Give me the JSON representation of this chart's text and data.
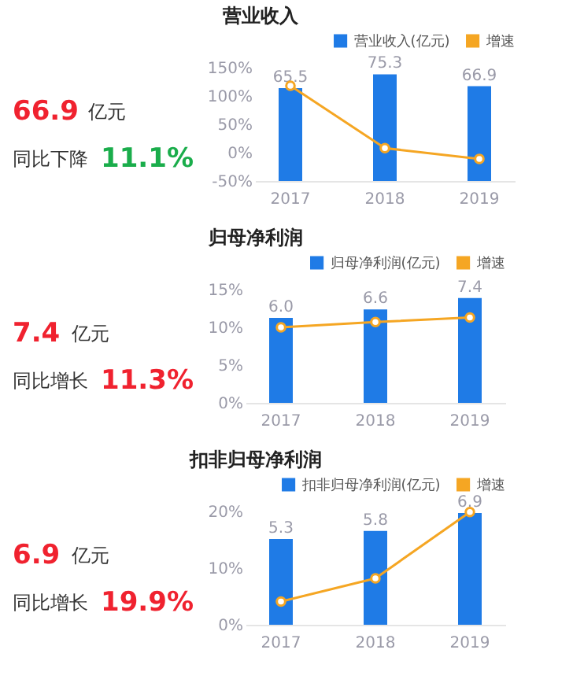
{
  "chart_data": [
    {
      "type": "other",
      "title": "营业收入",
      "annotations": [
        "66.9",
        "亿元",
        "同比下降",
        "11.1%"
      ],
      "colors": [
        "#f0222f",
        "#333333",
        "#333333",
        "#1aad4b"
      ]
    },
    {
      "type": "bar",
      "categories": [
        "2017",
        "2018",
        "2019"
      ],
      "series": [
        {
          "name": "营业收入(亿元)",
          "color": "#1f7be6",
          "values": [
            65.5,
            75.3,
            66.9
          ],
          "value_labels": [
            "65.5",
            "75.3",
            "66.9"
          ],
          "axis": "y2"
        },
        {
          "name": "增速",
          "type": "line",
          "color": "#f5a623",
          "values": [
            118,
            8,
            -11
          ]
        }
      ],
      "ylim": [
        -50,
        150
      ],
      "yticks": [
        {
          "value": -50,
          "label": "-50%"
        },
        {
          "value": 0,
          "label": "0%"
        },
        {
          "value": 50,
          "label": "50%"
        },
        {
          "value": 100,
          "label": "100%"
        },
        {
          "value": 150,
          "label": "150%"
        }
      ],
      "marker": "circle",
      "legend": "top right"
    },
    {
      "type": "other",
      "title": "归母净利润",
      "annotations": [
        "7.4",
        "亿元",
        "同比增长",
        "11.3%"
      ],
      "colors": [
        "#f0222f",
        "#333333",
        "#333333",
        "#f0222f"
      ]
    },
    {
      "type": "bar",
      "categories": [
        "2017",
        "2018",
        "2019"
      ],
      "series": [
        {
          "name": "归母净利润(亿元)",
          "color": "#1f7be6",
          "values": [
            6.0,
            6.6,
            7.4
          ],
          "value_labels": [
            "6.0",
            "6.6",
            "7.4"
          ],
          "axis": "y2"
        },
        {
          "name": "增速",
          "type": "line",
          "color": "#f5a623",
          "values": [
            10.0,
            10.7,
            11.3
          ]
        }
      ],
      "ylim": [
        0,
        15
      ],
      "yticks": [
        {
          "value": 0,
          "label": "0%"
        },
        {
          "value": 5,
          "label": "5%"
        },
        {
          "value": 10,
          "label": "10%"
        },
        {
          "value": 15,
          "label": "15%"
        }
      ],
      "marker": "circle",
      "legend": "top right"
    },
    {
      "type": "other",
      "title": "扣非归母净利润",
      "annotations": [
        "6.9",
        "亿元",
        "同比增长",
        "19.9%"
      ],
      "colors": [
        "#f0222f",
        "#333333",
        "#333333",
        "#f0222f"
      ]
    },
    {
      "type": "bar",
      "categories": [
        "2017",
        "2018",
        "2019"
      ],
      "series": [
        {
          "name": "扣非归母净利润(亿元)",
          "color": "#1f7be6",
          "values": [
            5.3,
            5.8,
            6.9
          ],
          "value_labels": [
            "5.3",
            "5.8",
            "6.9"
          ],
          "axis": "y2"
        },
        {
          "name": "增速",
          "type": "line",
          "color": "#f5a623",
          "values": [
            4.1,
            8.2,
            19.9
          ]
        }
      ],
      "ylim": [
        0,
        20
      ],
      "yticks": [
        {
          "value": 0,
          "label": "0%"
        },
        {
          "value": 10,
          "label": "10%"
        },
        {
          "value": 20,
          "label": "20%"
        }
      ],
      "marker": "circle",
      "legend": "top right"
    }
  ]
}
